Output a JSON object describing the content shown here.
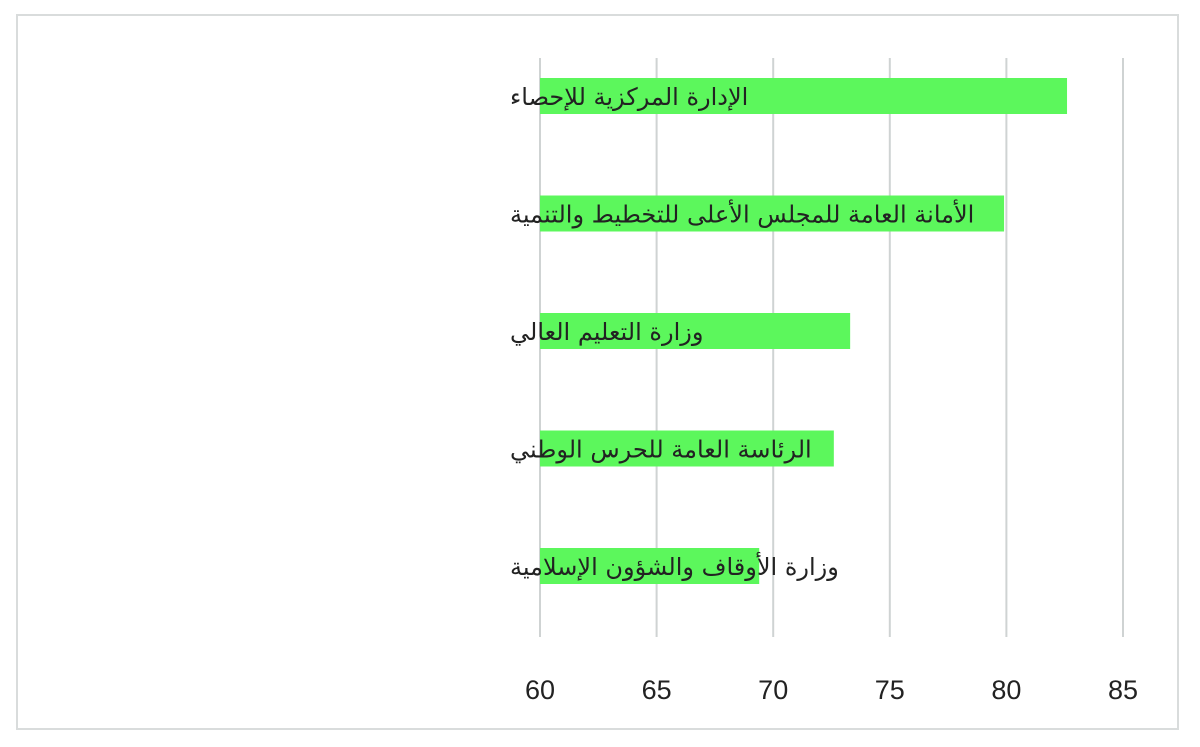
{
  "chart_data": {
    "type": "bar",
    "orientation": "horizontal",
    "categories": [
      "الإدارة المركزية للإحصاء",
      "الأمانة العامة للمجلس الأعلى للتخطيط والتنمية",
      "وزارة التعليم العالي",
      "الرئاسة العامة للحرس الوطني",
      "وزارة الأوقاف والشؤون الإسلامية"
    ],
    "values": [
      82.6,
      79.9,
      73.3,
      72.6,
      69.4
    ],
    "xlim": [
      60,
      85
    ],
    "xticks": [
      "60",
      "65",
      "70",
      "75",
      "80",
      "85"
    ],
    "grid": true,
    "legend": "none",
    "bar_color": "#5cf75c",
    "grid_color": "#cfd3d3"
  }
}
